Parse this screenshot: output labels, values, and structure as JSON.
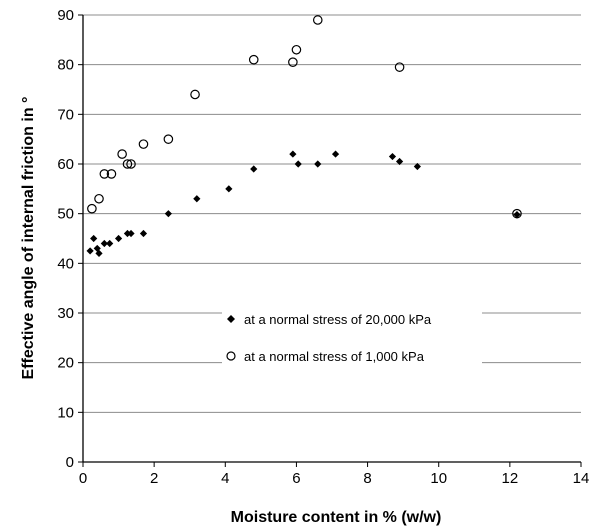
{
  "chart_data": {
    "type": "scatter",
    "xlabel": "Moisture content  in % (w/w)",
    "ylabel": "Effective angle of internal friction  in °",
    "xlim": [
      0,
      14
    ],
    "ylim": [
      0,
      90
    ],
    "x_ticks": [
      0,
      2,
      4,
      6,
      8,
      10,
      12,
      14
    ],
    "y_ticks": [
      0,
      10,
      20,
      30,
      40,
      50,
      60,
      70,
      80,
      90
    ],
    "grid": "horizontal",
    "legend_position": "lower-center",
    "series": [
      {
        "name": "at a normal stress of 20,000 kPa",
        "marker": "diamond-filled",
        "points": [
          [
            0.2,
            42.5
          ],
          [
            0.3,
            45
          ],
          [
            0.4,
            43
          ],
          [
            0.45,
            42
          ],
          [
            0.6,
            44
          ],
          [
            0.75,
            44
          ],
          [
            1.0,
            45
          ],
          [
            1.25,
            46
          ],
          [
            1.35,
            46
          ],
          [
            1.7,
            46
          ],
          [
            2.4,
            50
          ],
          [
            3.2,
            53
          ],
          [
            4.1,
            55
          ],
          [
            4.8,
            59
          ],
          [
            5.9,
            62
          ],
          [
            6.05,
            60
          ],
          [
            6.6,
            60
          ],
          [
            7.1,
            62
          ],
          [
            8.7,
            61.5
          ],
          [
            8.9,
            60.5
          ],
          [
            9.4,
            59.5
          ],
          [
            12.2,
            49.8
          ]
        ]
      },
      {
        "name": "at a normal stress of 1,000 kPa",
        "marker": "circle-open",
        "points": [
          [
            0.25,
            51
          ],
          [
            0.45,
            53
          ],
          [
            0.6,
            58
          ],
          [
            0.8,
            58
          ],
          [
            1.1,
            62
          ],
          [
            1.25,
            60
          ],
          [
            1.35,
            60
          ],
          [
            1.7,
            64
          ],
          [
            2.4,
            65
          ],
          [
            3.15,
            74
          ],
          [
            4.8,
            81
          ],
          [
            5.9,
            80.5
          ],
          [
            6.0,
            83
          ],
          [
            6.6,
            89
          ],
          [
            8.9,
            79.5
          ],
          [
            12.2,
            50
          ]
        ]
      }
    ]
  }
}
